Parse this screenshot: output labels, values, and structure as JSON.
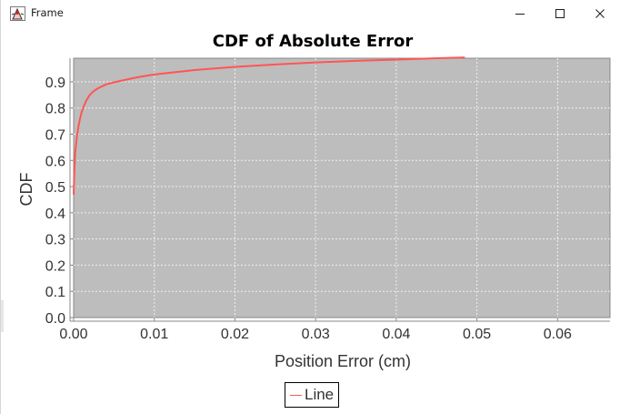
{
  "window": {
    "title": "Frame",
    "app_icon": "java-duke-icon",
    "buttons": {
      "minimize_icon": "minimize-icon",
      "maximize_icon": "maximize-icon",
      "close_icon": "close-icon"
    }
  },
  "chart_data": {
    "type": "line",
    "title": "CDF of Absolute Error",
    "xlabel": "Position Error (cm)",
    "ylabel": "CDF",
    "xlim": [
      0.0,
      0.0665
    ],
    "ylim": [
      0.0,
      0.99
    ],
    "x_ticks": [
      "0.00",
      "0.01",
      "0.02",
      "0.03",
      "0.04",
      "0.05",
      "0.06"
    ],
    "y_ticks": [
      "0.0",
      "0.1",
      "0.2",
      "0.3",
      "0.4",
      "0.5",
      "0.6",
      "0.7",
      "0.8",
      "0.9"
    ],
    "grid": true,
    "legend": "bottom-center",
    "colors": {
      "plot_background": "#bdbdbd",
      "grid": "#f0f0f0",
      "series": "#ff5555"
    },
    "series": [
      {
        "name": "Line",
        "x": [
          0.0,
          0.0001,
          0.0002,
          0.0004,
          0.0006,
          0.0008,
          0.001,
          0.0013,
          0.0016,
          0.002,
          0.0025,
          0.003,
          0.004,
          0.005,
          0.006,
          0.008,
          0.01,
          0.012,
          0.015,
          0.02,
          0.025,
          0.03,
          0.035,
          0.04,
          0.045,
          0.0485
        ],
        "values": [
          0.47,
          0.57,
          0.63,
          0.69,
          0.73,
          0.76,
          0.785,
          0.81,
          0.83,
          0.85,
          0.865,
          0.875,
          0.89,
          0.898,
          0.905,
          0.918,
          0.928,
          0.935,
          0.945,
          0.957,
          0.966,
          0.974,
          0.98,
          0.985,
          0.99,
          0.993
        ]
      }
    ]
  }
}
